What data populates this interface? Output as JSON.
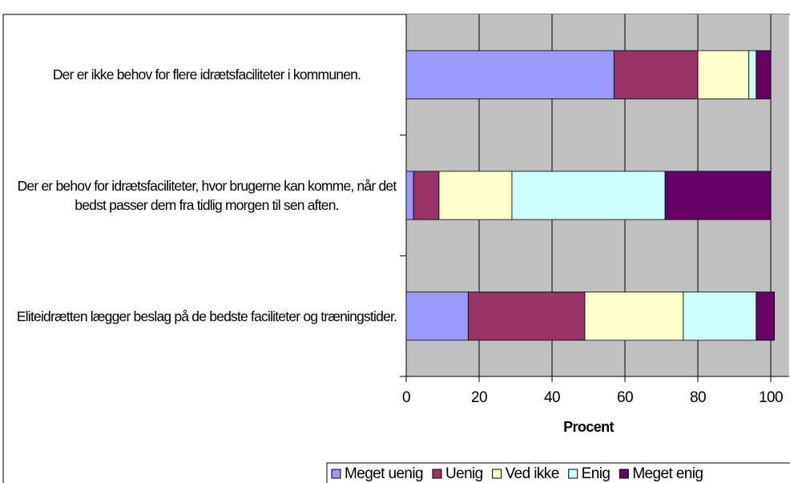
{
  "chart_data": {
    "type": "stacked-barh",
    "categories": [
      "Der er ikke behov for flere idrætsfaciliteter i kommunen.",
      "Der er behov for idrætsfaciliteter, hvor brugerne kan komme, når det bedst passer dem fra tidlig morgen til sen aften.",
      "Eliteidrætten lægger beslag på de bedste faciliteter og træningstider."
    ],
    "series": [
      {
        "name": "Meget uenig",
        "color": "#9999ff",
        "values": [
          57,
          2,
          17
        ]
      },
      {
        "name": "Uenig",
        "color": "#993366",
        "values": [
          23,
          7,
          32
        ]
      },
      {
        "name": "Ved ikke",
        "color": "#ffffcc",
        "values": [
          14,
          20,
          27
        ]
      },
      {
        "name": "Enig",
        "color": "#ccffff",
        "values": [
          2,
          42,
          20
        ]
      },
      {
        "name": "Meget enig",
        "color": "#660066",
        "values": [
          4,
          29,
          5
        ]
      }
    ],
    "xlabel": "Procent",
    "xlim": [
      0,
      105
    ],
    "xticks": [
      0,
      20,
      40,
      60,
      80,
      100
    ],
    "grid": true,
    "legend": "bottom"
  }
}
